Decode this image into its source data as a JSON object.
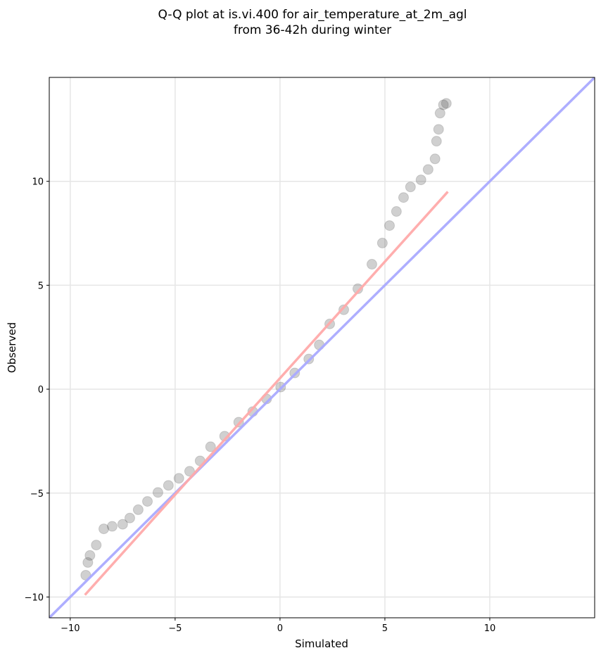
{
  "chart_data": {
    "type": "scatter",
    "title": [
      "Q-Q plot at is.vi.400 for air_temperature_at_2m_agl",
      "from 36-42h during winter"
    ],
    "x_label": "Simulated",
    "y_label": "Observed",
    "xlim": [
      -11,
      15
    ],
    "ylim": [
      -11,
      15
    ],
    "xticks": [
      {
        "value": -10,
        "label": "−10"
      },
      {
        "value": -5,
        "label": "−5"
      },
      0,
      5,
      10
    ],
    "yticks": [
      {
        "value": -10,
        "label": "−10"
      },
      {
        "value": -5,
        "label": "−5"
      },
      0,
      5,
      10
    ],
    "grid": true,
    "color": "#444444",
    "x": [
      -9.26,
      -9.16,
      -9.06,
      -8.76,
      -8.4,
      -8.0,
      -7.5,
      -7.16,
      -6.76,
      -6.32,
      -5.82,
      -5.32,
      -4.82,
      -4.31,
      -3.81,
      -3.31,
      -2.64,
      -1.97,
      -1.3,
      -0.64,
      0.03,
      0.7,
      1.37,
      1.87,
      2.37,
      3.04,
      3.71,
      4.38,
      4.88,
      5.22,
      5.55,
      5.89,
      6.22,
      6.72,
      7.06,
      7.39,
      7.46,
      7.56,
      7.63,
      7.79,
      7.93
    ],
    "y": [
      -8.95,
      -8.34,
      -8.0,
      -7.5,
      -6.72,
      -6.6,
      -6.5,
      -6.2,
      -5.8,
      -5.4,
      -4.97,
      -4.63,
      -4.29,
      -3.95,
      -3.45,
      -2.77,
      -2.26,
      -1.59,
      -1.08,
      -0.47,
      0.1,
      0.78,
      1.45,
      2.13,
      3.14,
      3.82,
      4.83,
      6.01,
      7.03,
      7.87,
      8.55,
      9.22,
      9.73,
      10.07,
      10.57,
      11.08,
      11.93,
      12.5,
      13.28,
      13.68,
      13.75
    ],
    "reference_lines": [
      {
        "color": "#aaaaff",
        "x": [
          -11,
          15
        ],
        "y": [
          -11,
          15
        ]
      },
      {
        "color": "#ffaaaa",
        "x": [
          -9.3,
          8.0
        ],
        "y": [
          -9.9,
          9.5
        ]
      }
    ]
  }
}
